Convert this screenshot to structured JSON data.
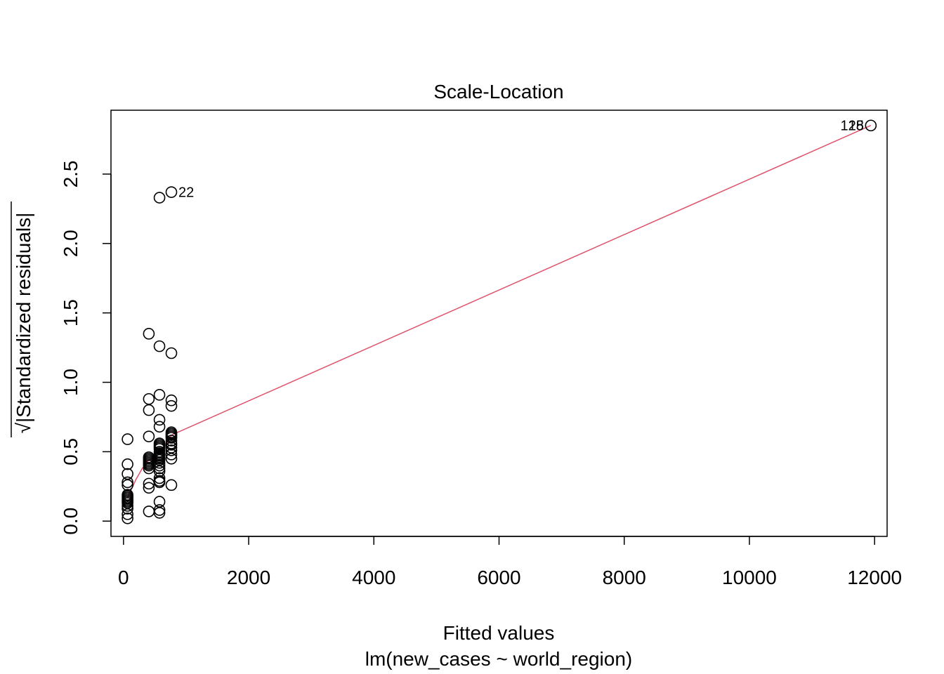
{
  "chart_data": {
    "type": "scatter",
    "title": "Scale-Location",
    "xlabel": "Fitted values",
    "xlabel_sub": "lm(new_cases ~ world_region)",
    "ylabel_radical": "√",
    "ylabel": "|Standardized residuals|",
    "xlim": [
      -200,
      12200
    ],
    "ylim": [
      -0.11,
      2.96
    ],
    "x_ticks": [
      0,
      2000,
      4000,
      6000,
      8000,
      10000,
      12000
    ],
    "x_tick_labels": [
      "0",
      "2000",
      "4000",
      "6000",
      "8000",
      "10000",
      "12000"
    ],
    "y_ticks": [
      0.0,
      0.5,
      1.0,
      1.5,
      2.0,
      2.5
    ],
    "y_tick_labels": [
      "0.0",
      "0.5",
      "1.0",
      "1.5",
      "2.0",
      "2.5"
    ],
    "grid": false,
    "colors": {
      "points": "#000000",
      "smooth": "#DF536B"
    },
    "points": [
      {
        "x": 65,
        "y": 0.59
      },
      {
        "x": 65,
        "y": 0.41
      },
      {
        "x": 65,
        "y": 0.34
      },
      {
        "x": 65,
        "y": 0.28
      },
      {
        "x": 65,
        "y": 0.26
      },
      {
        "x": 65,
        "y": 0.19
      },
      {
        "x": 65,
        "y": 0.18
      },
      {
        "x": 65,
        "y": 0.17
      },
      {
        "x": 65,
        "y": 0.16
      },
      {
        "x": 65,
        "y": 0.15
      },
      {
        "x": 65,
        "y": 0.14
      },
      {
        "x": 65,
        "y": 0.13
      },
      {
        "x": 65,
        "y": 0.11
      },
      {
        "x": 65,
        "y": 0.09
      },
      {
        "x": 65,
        "y": 0.05
      },
      {
        "x": 65,
        "y": 0.02
      },
      {
        "x": 405,
        "y": 1.35
      },
      {
        "x": 405,
        "y": 0.88
      },
      {
        "x": 405,
        "y": 0.8
      },
      {
        "x": 405,
        "y": 0.61
      },
      {
        "x": 405,
        "y": 0.46
      },
      {
        "x": 405,
        "y": 0.45
      },
      {
        "x": 405,
        "y": 0.44
      },
      {
        "x": 405,
        "y": 0.43
      },
      {
        "x": 405,
        "y": 0.42
      },
      {
        "x": 405,
        "y": 0.41
      },
      {
        "x": 405,
        "y": 0.4
      },
      {
        "x": 405,
        "y": 0.38
      },
      {
        "x": 405,
        "y": 0.27
      },
      {
        "x": 405,
        "y": 0.24
      },
      {
        "x": 405,
        "y": 0.07
      },
      {
        "x": 575,
        "y": 2.33
      },
      {
        "x": 575,
        "y": 1.26
      },
      {
        "x": 575,
        "y": 0.91
      },
      {
        "x": 575,
        "y": 0.73
      },
      {
        "x": 575,
        "y": 0.68
      },
      {
        "x": 575,
        "y": 0.56
      },
      {
        "x": 575,
        "y": 0.55
      },
      {
        "x": 575,
        "y": 0.54
      },
      {
        "x": 575,
        "y": 0.53
      },
      {
        "x": 575,
        "y": 0.52
      },
      {
        "x": 575,
        "y": 0.5
      },
      {
        "x": 575,
        "y": 0.49
      },
      {
        "x": 575,
        "y": 0.48
      },
      {
        "x": 575,
        "y": 0.47
      },
      {
        "x": 575,
        "y": 0.46
      },
      {
        "x": 575,
        "y": 0.45
      },
      {
        "x": 575,
        "y": 0.44
      },
      {
        "x": 575,
        "y": 0.42
      },
      {
        "x": 575,
        "y": 0.4
      },
      {
        "x": 575,
        "y": 0.38
      },
      {
        "x": 575,
        "y": 0.36
      },
      {
        "x": 575,
        "y": 0.31
      },
      {
        "x": 575,
        "y": 0.29
      },
      {
        "x": 575,
        "y": 0.28
      },
      {
        "x": 575,
        "y": 0.14
      },
      {
        "x": 575,
        "y": 0.08
      },
      {
        "x": 575,
        "y": 0.06
      },
      {
        "x": 765,
        "y": 2.37
      },
      {
        "x": 765,
        "y": 1.21
      },
      {
        "x": 765,
        "y": 0.87
      },
      {
        "x": 765,
        "y": 0.83
      },
      {
        "x": 765,
        "y": 0.64
      },
      {
        "x": 765,
        "y": 0.63
      },
      {
        "x": 765,
        "y": 0.62
      },
      {
        "x": 765,
        "y": 0.61
      },
      {
        "x": 765,
        "y": 0.6
      },
      {
        "x": 765,
        "y": 0.58
      },
      {
        "x": 765,
        "y": 0.56
      },
      {
        "x": 765,
        "y": 0.55
      },
      {
        "x": 765,
        "y": 0.53
      },
      {
        "x": 765,
        "y": 0.51
      },
      {
        "x": 765,
        "y": 0.48
      },
      {
        "x": 765,
        "y": 0.45
      },
      {
        "x": 765,
        "y": 0.26
      },
      {
        "x": 11940,
        "y": 2.85
      }
    ],
    "smooth_line": [
      {
        "x": 65,
        "y": 0.17
      },
      {
        "x": 200,
        "y": 0.3
      },
      {
        "x": 300,
        "y": 0.38
      },
      {
        "x": 405,
        "y": 0.44
      },
      {
        "x": 490,
        "y": 0.47
      },
      {
        "x": 575,
        "y": 0.5
      },
      {
        "x": 680,
        "y": 0.55
      },
      {
        "x": 765,
        "y": 0.62
      },
      {
        "x": 11940,
        "y": 2.85
      }
    ],
    "annotations": [
      {
        "label": "22",
        "x": 765,
        "y": 2.37,
        "anchor": "start"
      },
      {
        "label": "128",
        "x": 11940,
        "y": 2.85,
        "anchor": "end"
      },
      {
        "label": "15",
        "x": 11940,
        "y": 2.85,
        "anchor": "end"
      }
    ]
  }
}
